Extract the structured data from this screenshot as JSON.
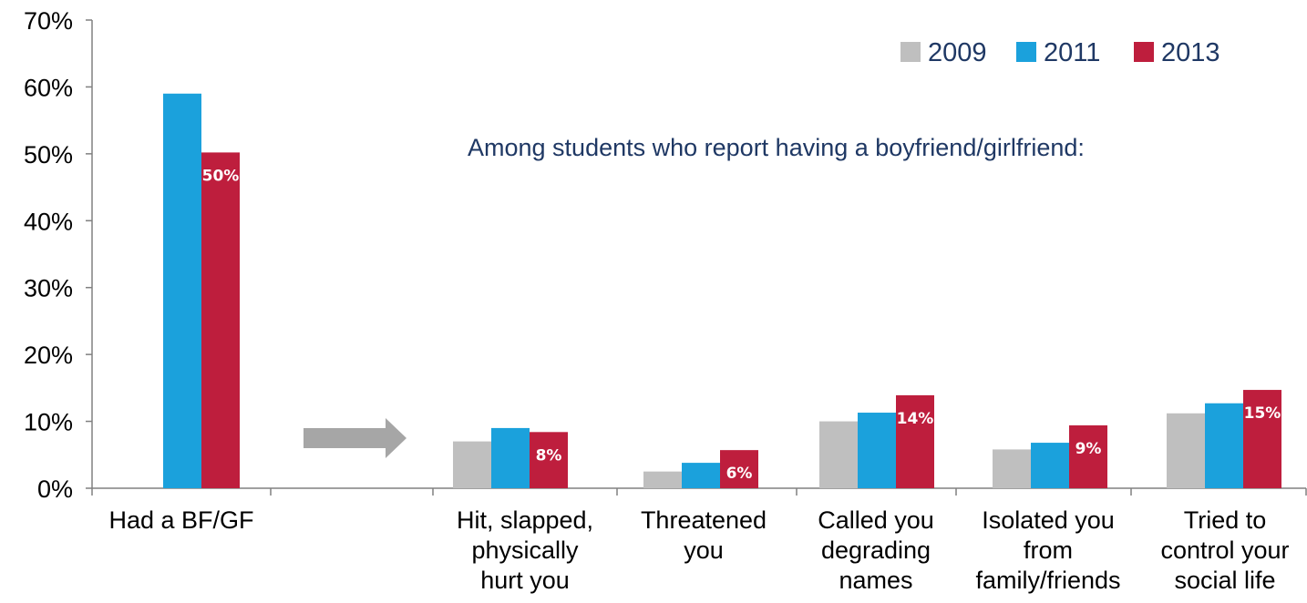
{
  "chart_data": {
    "type": "bar",
    "ylim": [
      0,
      70
    ],
    "yticks": [
      "0%",
      "10%",
      "20%",
      "30%",
      "40%",
      "50%",
      "60%",
      "70%"
    ],
    "categories": [
      [
        "Had a BF/GF"
      ],
      [
        "Hit, slapped,",
        "physically",
        "hurt you"
      ],
      [
        "Threatened",
        "you"
      ],
      [
        "Called you",
        "degrading",
        "names"
      ],
      [
        "Isolated you",
        "from",
        "family/friends"
      ],
      [
        "Tried to",
        "control your",
        "social life"
      ]
    ],
    "series": [
      {
        "name": "2009",
        "color": "#BFBFBF",
        "values": [
          null,
          7,
          2.5,
          10,
          5.8,
          11.2
        ]
      },
      {
        "name": "2011",
        "color": "#1BA1DC",
        "values": [
          59,
          9,
          3.8,
          11.3,
          6.8,
          12.7
        ]
      },
      {
        "name": "2013",
        "color": "#BE1E3D",
        "values": [
          50.2,
          8.4,
          5.7,
          13.9,
          9.4,
          14.7
        ]
      }
    ],
    "data_labels": [
      "50%",
      "8%",
      "6%",
      "14%",
      "9%",
      "15%"
    ],
    "annotation": "Among students who report having a boyfriend/girlfriend:",
    "legend_position": "top-right",
    "grid": false
  }
}
